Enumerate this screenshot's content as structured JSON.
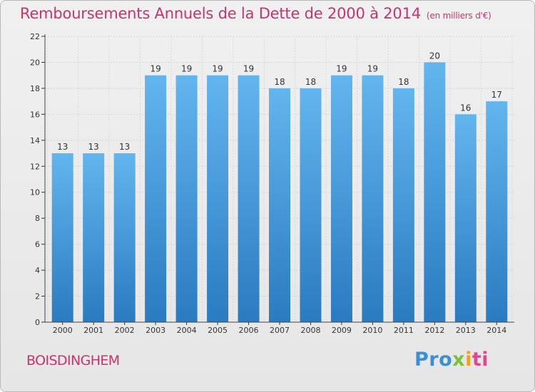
{
  "header": {
    "title": "Remboursements Annuels de la Dette de 2000 à 2014",
    "unit": "(en milliers d'€)"
  },
  "footer": {
    "city": "BOISDINGHEM",
    "brand": "Proxiti",
    "brand_parts": [
      "Pro",
      "x",
      "i",
      "ti"
    ]
  },
  "colors": {
    "title": "#c8336e",
    "bar_light": "#63b5ee",
    "bar_dark": "#2a7bc0",
    "axis": "#c8336e"
  },
  "chart_data": {
    "type": "bar",
    "title": "Remboursements Annuels de la Dette de 2000 à 2014",
    "xlabel": "",
    "ylabel": "en milliers d'€",
    "categories": [
      "2000",
      "2001",
      "2002",
      "2003",
      "2004",
      "2005",
      "2006",
      "2007",
      "2008",
      "2009",
      "2010",
      "2011",
      "2012",
      "2013",
      "2014"
    ],
    "values": [
      13,
      13,
      13,
      19,
      19,
      19,
      19,
      18,
      18,
      19,
      19,
      18,
      20,
      16,
      17
    ],
    "ylim": [
      0,
      22
    ],
    "yticks": [
      0,
      2,
      4,
      6,
      8,
      10,
      12,
      14,
      16,
      18,
      20,
      22
    ],
    "grid": true
  }
}
